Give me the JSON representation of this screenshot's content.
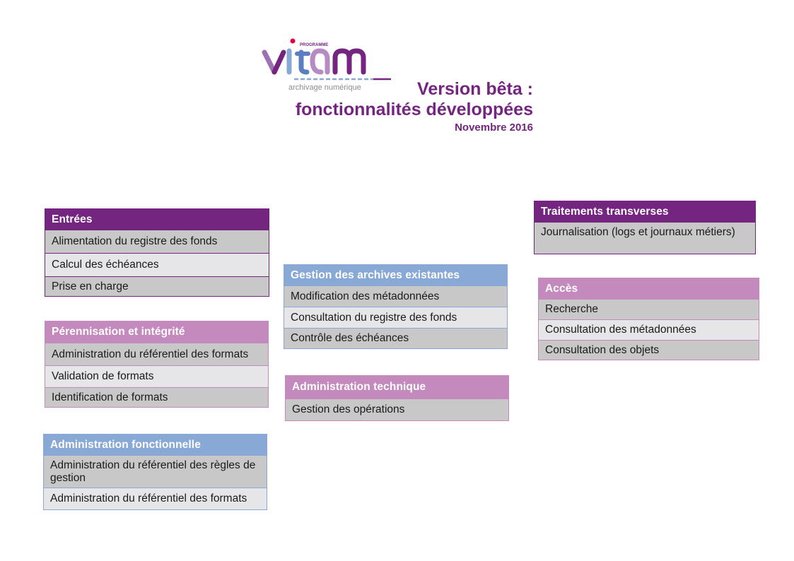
{
  "logo": {
    "program_label": "PROGRAMME",
    "wordmark": "vitam",
    "tagline": "archivage numérique"
  },
  "title": {
    "line1": "Version bêta :",
    "line2": "fonctionnalités développées",
    "date": "Novembre 2016"
  },
  "colors": {
    "purple": "#73257f",
    "pink": "#c489bd",
    "blue": "#88a8d6",
    "row_dark": "#c9c8c8",
    "row_light": "#e6e5e8"
  },
  "boxes": {
    "entrees": {
      "title": "Entrées",
      "items": [
        "Alimentation du registre des fonds",
        "Calcul des échéances",
        "Prise en charge"
      ]
    },
    "perennisation": {
      "title": "Pérennisation et intégrité",
      "items": [
        "Administration du référentiel des formats",
        "Validation de formats",
        "Identification de formats"
      ]
    },
    "admin_fonctionnelle": {
      "title": "Administration fonctionnelle",
      "items": [
        "Administration du référentiel des règles de gestion",
        "Administration du référentiel des formats"
      ]
    },
    "gestion_archives": {
      "title": "Gestion des archives existantes",
      "items": [
        "Modification des métadonnées",
        "Consultation du registre des fonds",
        "Contrôle des échéances"
      ]
    },
    "admin_technique": {
      "title": "Administration technique",
      "items": [
        "Gestion des opérations"
      ]
    },
    "traitements": {
      "title": "Traitements transverses",
      "items": [
        "Journalisation (logs et journaux métiers)"
      ]
    },
    "acces": {
      "title": "Accès",
      "items": [
        "Recherche",
        "Consultation des métadonnées",
        "Consultation des objets"
      ]
    }
  }
}
